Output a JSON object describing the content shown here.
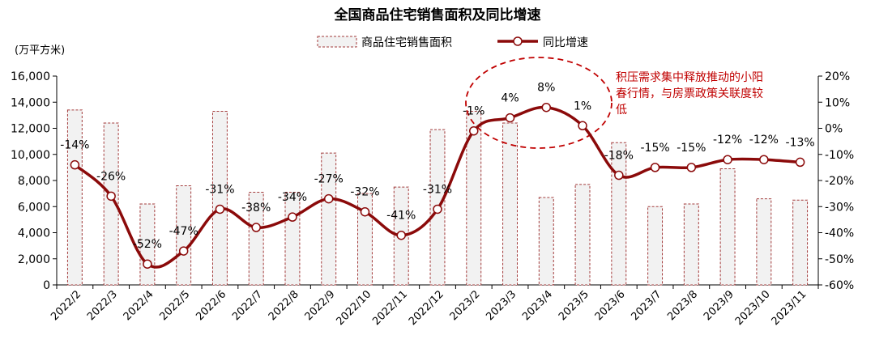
{
  "chart_data": {
    "type": "bar",
    "title": "全国商品住宅销售面积及同比增速",
    "ylabel": "(万平方米)",
    "categories": [
      "2022/2",
      "2022/3",
      "2022/4",
      "2022/5",
      "2022/6",
      "2022/7",
      "2022/8",
      "2022/9",
      "2022/10",
      "2022/11",
      "2022/12",
      "2023/2",
      "2023/3",
      "2023/4",
      "2023/5",
      "2023/6",
      "2023/7",
      "2023/8",
      "2023/9",
      "2023/10",
      "2023/11"
    ],
    "series": [
      {
        "name": "商品住宅销售面积",
        "type": "bar",
        "axis": "left",
        "values": [
          13400,
          12400,
          6200,
          7600,
          13300,
          7100,
          7100,
          10100,
          7000,
          7500,
          11900,
          13300,
          12400,
          6700,
          7700,
          10900,
          6000,
          6200,
          8900,
          6600,
          6500
        ]
      },
      {
        "name": "同比增速",
        "type": "line",
        "axis": "right",
        "values": [
          -14,
          -26,
          -52,
          -47,
          -31,
          -38,
          -34,
          -27,
          -32,
          -41,
          -31,
          -1,
          4,
          8,
          1,
          -18,
          -15,
          -15,
          -12,
          -12,
          -13
        ]
      }
    ],
    "data_labels": [
      "-14%",
      "-26%",
      "-52%",
      "-47%",
      "-31%",
      "-38%",
      "-34%",
      "-27%",
      "-32%",
      "-41%",
      "-31%",
      "-1%",
      "4%",
      "8%",
      "1%",
      "-18%",
      "-15%",
      "-15%",
      "-12%",
      "-12%",
      "-13%"
    ],
    "yticks_left": [
      "0",
      "2,000",
      "4,000",
      "6,000",
      "8,000",
      "10,000",
      "12,000",
      "14,000",
      "16,000"
    ],
    "yticks_right": [
      "-60%",
      "-50%",
      "-40%",
      "-30%",
      "-20%",
      "-10%",
      "0%",
      "10%",
      "20%"
    ],
    "ylim_left": [
      0,
      16000
    ],
    "ylim_right": [
      -60,
      20
    ],
    "annotation": [
      "积压需求集中释放推动的小阳",
      "春行情，与房票政策关联度较",
      "低"
    ],
    "colors": {
      "bar_fill": "#f2f2f2",
      "bar_border": "#a33b3b",
      "line": "#8b0a0a",
      "note": "#c00000"
    },
    "legend_position": "top"
  }
}
